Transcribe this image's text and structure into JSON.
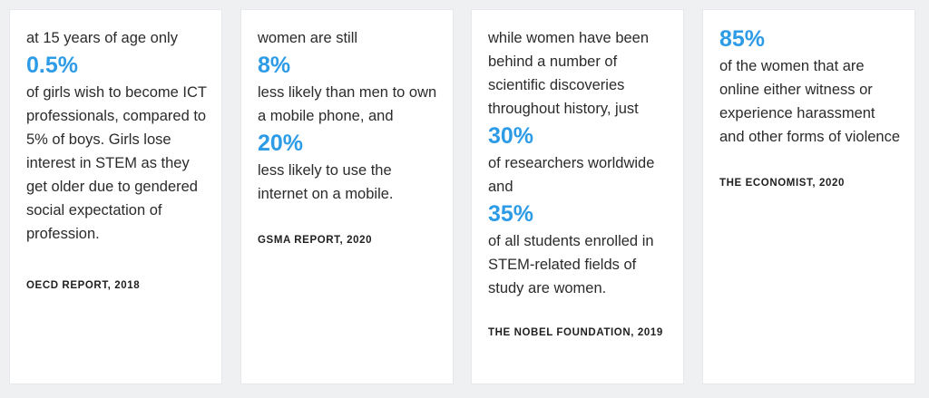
{
  "cards": [
    {
      "intro": "at 15 years of age only",
      "stat": "0.5%",
      "body": "of girls wish to become ICT professionals, compared to 5% of boys. Girls lose interest in STEM as they get older due to gendered social expectation of profession.",
      "source": "OECD REPORT, 2018"
    },
    {
      "intro": "women are still",
      "stat1": "8%",
      "body1": "less likely than men to own a mobile phone, and",
      "stat2": "20%",
      "body2": "less likely to use the internet on a mobile.",
      "source": "GSMA REPORT, 2020"
    },
    {
      "intro": "while women have been behind a number of scientific discoveries throughout history, just",
      "stat1": "30%",
      "body1": "of researchers worldwide and",
      "stat2": "35%",
      "body2": "of all students enrolled in STEM-related fields of study are women.",
      "source": "THE NOBEL FOUNDATION, 2019"
    },
    {
      "stat": "85%",
      "body": "of the women that are online either witness or experience harassment and other forms of violence",
      "source": "THE ECONOMIST, 2020"
    }
  ],
  "colors": {
    "accent": "#2d9be6",
    "text": "#2b2b2b",
    "background": "#eef0f2",
    "card": "#ffffff"
  }
}
